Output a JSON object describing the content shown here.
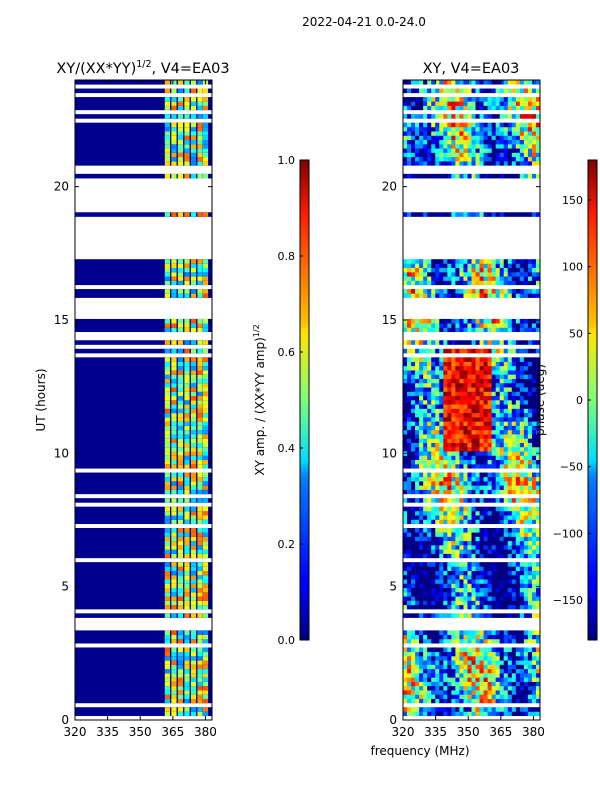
{
  "suptitle": "2022-04-21 0.0-24.0",
  "chart_data": [
    {
      "type": "heatmap",
      "title": "XY/(XX*YY)$^{1/2}$, V4=EA03",
      "title_main": "XY/(XX*YY)",
      "title_sup": "1/2",
      "title_tail": ", V4=EA03",
      "xlabel": "",
      "ylabel": "UT (hours)",
      "xlim": [
        320,
        383
      ],
      "ylim": [
        0,
        24
      ],
      "xticks": [
        320,
        335,
        350,
        365,
        380
      ],
      "xtick_labels": [
        "320",
        "335",
        "350",
        "365",
        "380"
      ],
      "yticks": [
        0,
        5,
        10,
        15,
        20
      ],
      "ytick_labels": [
        "0",
        "5",
        "10",
        "15",
        "20"
      ],
      "colorbar": {
        "label_main": "XY amp. / (XX*YY amp)",
        "label_sup": "1/2",
        "range": [
          0.0,
          1.0
        ],
        "ticks": [
          0.0,
          0.2,
          0.4,
          0.6,
          0.8,
          1.0
        ],
        "tick_labels": [
          "0.0",
          "0.2",
          "0.4",
          "0.6",
          "0.8",
          "1.0"
        ],
        "colormap": "jet"
      }
    },
    {
      "type": "heatmap",
      "title": "XY, V4=EA03",
      "xlabel": "frequency (MHz)",
      "ylabel": "",
      "xlim": [
        320,
        383
      ],
      "ylim": [
        0,
        24
      ],
      "xticks": [
        320,
        335,
        350,
        365,
        380
      ],
      "xtick_labels": [
        "320",
        "335",
        "350",
        "365",
        "380"
      ],
      "yticks": [
        0,
        5,
        10,
        15,
        20
      ],
      "ytick_labels": [
        "0",
        "5",
        "10",
        "15",
        "20"
      ],
      "colorbar": {
        "label_main": "phase (deg)",
        "range": [
          -180,
          180
        ],
        "ticks": [
          -150,
          -100,
          -50,
          0,
          50,
          100,
          150
        ],
        "tick_labels": [
          "−150",
          "−100",
          "−50",
          "0",
          "50",
          "100",
          "150"
        ],
        "colormap": "jet"
      }
    }
  ],
  "data_gaps_ut_hours": [
    [
      14.9,
      15.6
    ],
    [
      17.2,
      18.8
    ],
    [
      19.0,
      20.1
    ],
    [
      3.3,
      3.7
    ]
  ],
  "colors": {
    "low": "#00008f",
    "high": "#800000"
  }
}
